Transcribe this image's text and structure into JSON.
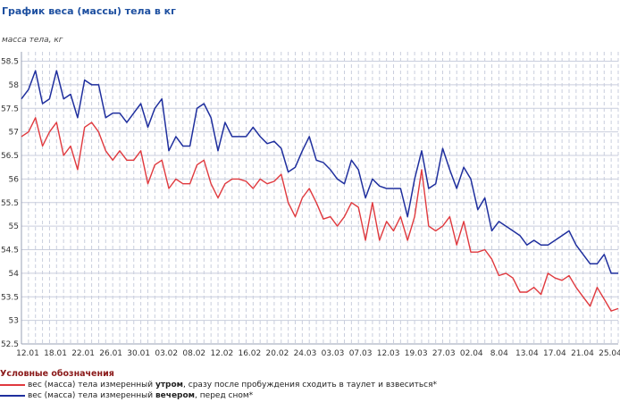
{
  "chart_data": {
    "type": "line",
    "title": "График веса (массы) тела в кг",
    "ylabel": "масса тела, кг",
    "xlabel": "",
    "ylim": [
      52.5,
      58.7
    ],
    "yticks": [
      "52.5",
      "53",
      "53.5",
      "54",
      "54.5",
      "55",
      "55.5",
      "56",
      "56.5",
      "57",
      "57.5",
      "58",
      "58.5"
    ],
    "xtick_labels": [
      "12.01",
      "18.01",
      "22.01",
      "26.01",
      "30.01",
      "03.02",
      "08.02",
      "12.02",
      "16.02",
      "20.02",
      "24.03",
      "03.03",
      "07.03",
      "12.03",
      "19.03",
      "27.03",
      "02.04",
      "8.04",
      "13.04",
      "17.04",
      "21.04",
      "25.04"
    ],
    "grid": true,
    "legend_position": "bottom",
    "series": [
      {
        "name": "вес (масса) тела измеренный утром, сразу после пробуждения сходить в таулет и взвеситься*",
        "color": "#e0393e",
        "values": [
          56.9,
          57.0,
          57.3,
          56.7,
          57.0,
          57.2,
          56.5,
          56.7,
          56.2,
          57.1,
          57.2,
          57.0,
          56.6,
          56.4,
          56.6,
          56.4,
          56.4,
          56.6,
          55.9,
          56.3,
          56.4,
          55.8,
          56.0,
          55.9,
          55.9,
          56.3,
          56.4,
          55.9,
          55.6,
          55.9,
          56.0,
          56.0,
          55.95,
          55.8,
          56.0,
          55.9,
          55.95,
          56.1,
          55.5,
          55.2,
          55.6,
          55.8,
          55.5,
          55.15,
          55.2,
          55.0,
          55.2,
          55.5,
          55.4,
          54.7,
          55.5,
          54.7,
          55.1,
          54.9,
          55.2,
          54.7,
          55.2,
          56.2,
          55.0,
          54.9,
          55.0,
          55.2,
          54.6,
          55.1,
          54.45,
          54.45,
          54.5,
          54.3,
          53.95,
          54.0,
          53.9,
          53.6,
          53.6,
          53.7,
          53.55,
          54.0,
          53.9,
          53.85,
          53.95,
          53.7,
          53.5,
          53.3,
          53.7,
          53.45,
          53.2,
          53.25
        ]
      },
      {
        "name": "вес (масса) тела измеренный вечером, перед сном*",
        "color": "#1f2f9e",
        "values": [
          57.7,
          57.9,
          58.3,
          57.6,
          57.7,
          58.3,
          57.7,
          57.8,
          57.3,
          58.1,
          58.0,
          58.0,
          57.3,
          57.4,
          57.4,
          57.2,
          57.4,
          57.6,
          57.1,
          57.5,
          57.7,
          56.6,
          56.9,
          56.7,
          56.7,
          57.5,
          57.6,
          57.3,
          56.6,
          57.2,
          56.9,
          56.9,
          56.9,
          57.1,
          56.9,
          56.75,
          56.8,
          56.65,
          56.15,
          56.25,
          56.6,
          56.9,
          56.4,
          56.35,
          56.2,
          56.0,
          55.9,
          56.4,
          56.2,
          55.6,
          56.0,
          55.85,
          55.8,
          55.8,
          55.8,
          55.2,
          56.0,
          56.6,
          55.8,
          55.9,
          56.65,
          56.2,
          55.8,
          56.25,
          56.0,
          55.35,
          55.6,
          54.9,
          55.1,
          55.0,
          54.9,
          54.8,
          54.6,
          54.7,
          54.6,
          54.6,
          54.7,
          54.8,
          54.9,
          54.6,
          54.4,
          54.2,
          54.2,
          54.4,
          54.0,
          54.0
        ]
      }
    ]
  },
  "legend": {
    "title": "Условные обозначения",
    "morning": {
      "pre": "вес (масса) тела измеренный ",
      "bold": "утром",
      "post": ", сразу после пробуждения сходить в таулет и взвеситься*"
    },
    "evening": {
      "pre": "вес (масса) тела измеренный ",
      "bold": "вечером",
      "post": ", перед сном*"
    }
  }
}
